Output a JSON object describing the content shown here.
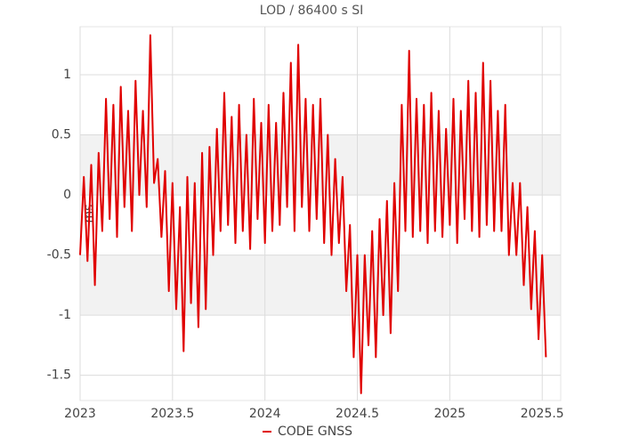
{
  "chart_data": {
    "type": "line",
    "title": "LOD / 86400 s SI",
    "ylabel": "ms",
    "x": [
      2023.0,
      2023.02,
      2023.04,
      2023.06,
      2023.08,
      2023.1,
      2023.12,
      2023.14,
      2023.16,
      2023.18,
      2023.2,
      2023.22,
      2023.24,
      2023.26,
      2023.28,
      2023.3,
      2023.32,
      2023.34,
      2023.36,
      2023.38,
      2023.4,
      2023.42,
      2023.44,
      2023.46,
      2023.48,
      2023.5,
      2023.52,
      2023.54,
      2023.56,
      2023.58,
      2023.6,
      2023.62,
      2023.64,
      2023.66,
      2023.68,
      2023.7,
      2023.72,
      2023.74,
      2023.76,
      2023.78,
      2023.8,
      2023.82,
      2023.84,
      2023.86,
      2023.88,
      2023.9,
      2023.92,
      2023.94,
      2023.96,
      2023.98,
      2024.0,
      2024.02,
      2024.04,
      2024.06,
      2024.08,
      2024.1,
      2024.12,
      2024.14,
      2024.16,
      2024.18,
      2024.2,
      2024.22,
      2024.24,
      2024.26,
      2024.28,
      2024.3,
      2024.32,
      2024.34,
      2024.36,
      2024.38,
      2024.4,
      2024.42,
      2024.44,
      2024.46,
      2024.48,
      2024.5,
      2024.52,
      2024.54,
      2024.56,
      2024.58,
      2024.6,
      2024.62,
      2024.64,
      2024.66,
      2024.68,
      2024.7,
      2024.72,
      2024.74,
      2024.76,
      2024.78,
      2024.8,
      2024.82,
      2024.84,
      2024.86,
      2024.88,
      2024.9,
      2024.92,
      2024.94,
      2024.96,
      2024.98,
      2025.0,
      2025.02,
      2025.04,
      2025.06,
      2025.08,
      2025.1,
      2025.12,
      2025.14,
      2025.16,
      2025.18,
      2025.2,
      2025.22,
      2025.24,
      2025.26,
      2025.28,
      2025.3,
      2025.32,
      2025.34,
      2025.36,
      2025.38,
      2025.4,
      2025.42,
      2025.44,
      2025.46,
      2025.48,
      2025.5,
      2025.52
    ],
    "series": [
      {
        "name": "CODE GNSS",
        "color": "#e00000",
        "values": [
          -0.5,
          0.15,
          -0.55,
          0.25,
          -0.75,
          0.35,
          -0.3,
          0.8,
          -0.2,
          0.75,
          -0.35,
          0.9,
          -0.1,
          0.7,
          -0.3,
          0.95,
          0.0,
          0.7,
          -0.1,
          1.33,
          0.1,
          0.3,
          -0.35,
          0.2,
          -0.8,
          0.1,
          -0.95,
          -0.1,
          -1.3,
          0.15,
          -0.9,
          0.1,
          -1.1,
          0.35,
          -0.95,
          0.4,
          -0.5,
          0.55,
          -0.3,
          0.85,
          -0.25,
          0.65,
          -0.4,
          0.75,
          -0.3,
          0.5,
          -0.45,
          0.8,
          -0.2,
          0.6,
          -0.4,
          0.75,
          -0.3,
          0.6,
          -0.25,
          0.85,
          -0.1,
          1.1,
          -0.3,
          1.25,
          -0.1,
          0.8,
          -0.3,
          0.75,
          -0.2,
          0.8,
          -0.4,
          0.5,
          -0.5,
          0.3,
          -0.4,
          0.15,
          -0.8,
          -0.25,
          -1.35,
          -0.5,
          -1.65,
          -0.5,
          -1.25,
          -0.3,
          -1.35,
          -0.2,
          -1.0,
          -0.05,
          -1.15,
          0.1,
          -0.8,
          0.75,
          -0.3,
          1.2,
          -0.35,
          0.8,
          -0.3,
          0.75,
          -0.4,
          0.85,
          -0.3,
          0.7,
          -0.35,
          0.55,
          -0.25,
          0.8,
          -0.4,
          0.7,
          -0.2,
          0.95,
          -0.3,
          0.85,
          -0.35,
          1.1,
          -0.25,
          0.95,
          -0.3,
          0.7,
          -0.3,
          0.75,
          -0.5,
          0.1,
          -0.5,
          0.1,
          -0.75,
          -0.1,
          -0.95,
          -0.3,
          -1.2,
          -0.5,
          -1.35
        ]
      }
    ],
    "xlim": [
      2023,
      2025.6
    ],
    "xticks": [
      2023,
      2023.5,
      2024,
      2024.5,
      2025,
      2025.5
    ],
    "ylim": [
      -1.71,
      1.4
    ],
    "yticks": [
      -1.5,
      -1,
      -0.5,
      0,
      0.5,
      1
    ],
    "grid": true
  }
}
